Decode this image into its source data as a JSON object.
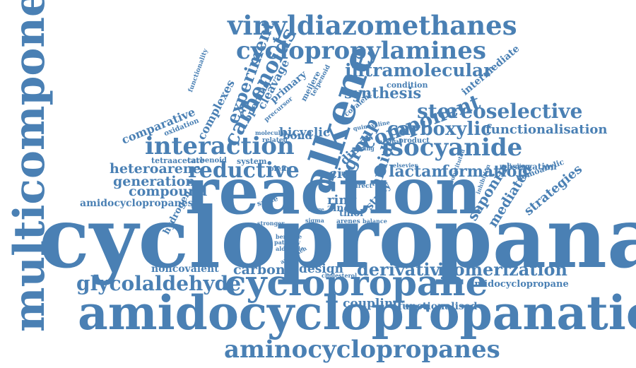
{
  "cloud": {
    "color": "#4a80b4",
    "background": "#ffffff",
    "words": [
      {
        "id": "multicomponent",
        "text": "multicomponent"
      },
      {
        "id": "cyclopropanation",
        "text": "cyclopropanation"
      },
      {
        "id": "reaction",
        "text": "reaction"
      },
      {
        "id": "amidocyclopropanation",
        "text": "amidocyclopropanation"
      },
      {
        "id": "cyclopropane",
        "text": "cyclopropane"
      },
      {
        "id": "aminocyclopropanes",
        "text": "aminocyclopropanes"
      },
      {
        "id": "vinyldiazomethanes",
        "text": "vinyldiazomethanes"
      },
      {
        "id": "cyclopropylamines",
        "text": "cyclopropylamines"
      },
      {
        "id": "alkene",
        "text": "alkene"
      },
      {
        "id": "interaction",
        "text": "interaction"
      },
      {
        "id": "isocyanide",
        "text": "isocyanide"
      },
      {
        "id": "carbenoids",
        "text": "carbenoids"
      },
      {
        "id": "intramolecular",
        "text": "intramolecular"
      },
      {
        "id": "stereoselective",
        "text": "stereoselective"
      },
      {
        "id": "component",
        "text": "component"
      },
      {
        "id": "carboxylic",
        "text": "carboxylic"
      },
      {
        "id": "reductive",
        "text": "reductive"
      },
      {
        "id": "experiment",
        "text": "experiment"
      },
      {
        "id": "glycolaldehyde",
        "text": "glycolaldehyde"
      },
      {
        "id": "derivative",
        "text": "derivative"
      },
      {
        "id": "isomerization",
        "text": "isomerization"
      },
      {
        "id": "functionalisation",
        "text": "functionalisation"
      },
      {
        "id": "synthesis",
        "text": "synthesis"
      },
      {
        "id": "lactam",
        "text": "lactam"
      },
      {
        "id": "formation",
        "text": "formation"
      },
      {
        "id": "group",
        "text": "group"
      },
      {
        "id": "amide",
        "text": "amide"
      },
      {
        "id": "heteroarene",
        "text": "heteroarene"
      },
      {
        "id": "generation",
        "text": "generation"
      },
      {
        "id": "compound",
        "text": "compound"
      },
      {
        "id": "comparative",
        "text": "comparative"
      },
      {
        "id": "complexes",
        "text": "complexes"
      },
      {
        "id": "opening",
        "text": "opening"
      },
      {
        "id": "cleavage",
        "text": "cleavage"
      },
      {
        "id": "primary",
        "text": "primary"
      },
      {
        "id": "bicyclic",
        "text": "bicyclic"
      },
      {
        "id": "bond",
        "text": "bond"
      },
      {
        "id": "acid",
        "text": "acid"
      },
      {
        "id": "dimer",
        "text": "dimer"
      },
      {
        "id": "saponin",
        "text": "saponin"
      },
      {
        "id": "mediated",
        "text": "mediated"
      },
      {
        "id": "strategies",
        "text": "strategies"
      },
      {
        "id": "noncovalent",
        "text": "noncovalent"
      },
      {
        "id": "carbonyl",
        "text": "carbonyl"
      },
      {
        "id": "design",
        "text": "design"
      },
      {
        "id": "coupling",
        "text": "coupling"
      },
      {
        "id": "functionalised",
        "text": "functionalised"
      },
      {
        "id": "amidocyclopropane",
        "text": "amidocyclopropane"
      },
      {
        "id": "amidocyclopropanes",
        "text": "amidocyclopropanes"
      },
      {
        "id": "hydrogen",
        "text": "hydrogen"
      },
      {
        "id": "tetraacetate",
        "text": "tetraacetate"
      },
      {
        "id": "carbenoid",
        "text": "carbenoid"
      },
      {
        "id": "system",
        "text": "system"
      },
      {
        "id": "olefin",
        "text": "olefin"
      },
      {
        "id": "ring",
        "text": "ring"
      },
      {
        "id": "zinc",
        "text": "zinc"
      },
      {
        "id": "thiol",
        "text": "thiol"
      },
      {
        "id": "study",
        "text": "study"
      },
      {
        "id": "smile",
        "text": "smile"
      },
      {
        "id": "observation",
        "text": "observation"
      },
      {
        "id": "homoallylic",
        "text": "homoallylic"
      },
      {
        "id": "palladium",
        "text": "palladium"
      },
      {
        "id": "intermediate",
        "text": "intermediate"
      },
      {
        "id": "condition",
        "text": "condition"
      },
      {
        "id": "quinoxaline",
        "text": "quinoxaline"
      },
      {
        "id": "acetal",
        "text": "acetal"
      },
      {
        "id": "product",
        "text": "product"
      },
      {
        "id": "elsevier",
        "text": "elsevier"
      },
      {
        "id": "oxidation",
        "text": "oxidation"
      },
      {
        "id": "functionality",
        "text": "functionality"
      },
      {
        "id": "precursor",
        "text": "precursor"
      },
      {
        "id": "meijere",
        "text": "meijere"
      },
      {
        "id": "terpenoid",
        "text": "terpenoid"
      },
      {
        "id": "molecular",
        "text": "molecular"
      },
      {
        "id": "related",
        "text": "related"
      },
      {
        "id": "covalent",
        "text": "covalent"
      },
      {
        "id": "surfing",
        "text": "surfing"
      },
      {
        "id": "direct",
        "text": "direct"
      },
      {
        "id": "arenes",
        "text": "arenes"
      },
      {
        "id": "sigma",
        "text": "sigma"
      },
      {
        "id": "stronger",
        "text": "stronger"
      },
      {
        "id": "approach",
        "text": "approach"
      },
      {
        "id": "benzene",
        "text": "benzene"
      },
      {
        "id": "pathway",
        "text": "pathway"
      },
      {
        "id": "aldehyde",
        "text": "aldehyde"
      },
      {
        "id": "cholesterol",
        "text": "cholesterol"
      },
      {
        "id": "balance",
        "text": "balance"
      },
      {
        "id": "range",
        "text": "range"
      },
      {
        "id": "pair",
        "text": "pair"
      },
      {
        "id": "substituted",
        "text": "substituted"
      },
      {
        "id": "inhibition",
        "text": "inhibition"
      }
    ]
  }
}
